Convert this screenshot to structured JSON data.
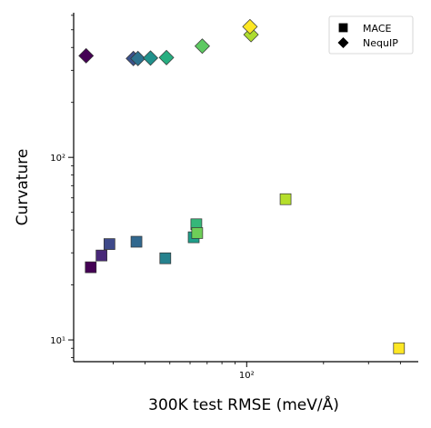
{
  "chart_data": {
    "type": "scatter",
    "xlabel": "300K test RMSE (meV/Å)",
    "ylabel": "Curvature",
    "xscale": "log",
    "yscale": "log",
    "xlim": [
      21,
      470
    ],
    "ylim": [
      7.6,
      620
    ],
    "grid": false,
    "legend_position": "top-right",
    "x_ticks": [
      {
        "value": 100,
        "label": "10²"
      }
    ],
    "y_ticks": [
      {
        "value": 10,
        "label": "10¹"
      },
      {
        "value": 100,
        "label": "10²"
      }
    ],
    "colormap": "viridis",
    "series": [
      {
        "name": "MACE",
        "marker": "square",
        "points": [
          {
            "x": 24.5,
            "y": 25,
            "color": "#440154"
          },
          {
            "x": 27,
            "y": 29,
            "color": "#482878"
          },
          {
            "x": 29,
            "y": 33.5,
            "color": "#3e4989"
          },
          {
            "x": 37,
            "y": 34.5,
            "color": "#31688e"
          },
          {
            "x": 48,
            "y": 28,
            "color": "#26828e"
          },
          {
            "x": 62,
            "y": 36.5,
            "color": "#1f9e89"
          },
          {
            "x": 63.5,
            "y": 43,
            "color": "#35b779"
          },
          {
            "x": 64,
            "y": 38.5,
            "color": "#6ece58"
          },
          {
            "x": 142,
            "y": 59,
            "color": "#b5de2b"
          },
          {
            "x": 395,
            "y": 9,
            "color": "#fde725"
          }
        ]
      },
      {
        "name": "NequIP",
        "marker": "diamond",
        "points": [
          {
            "x": 23.5,
            "y": 360,
            "color": "#440154"
          },
          {
            "x": 36,
            "y": 348,
            "color": "#3b528b"
          },
          {
            "x": 37.5,
            "y": 348,
            "color": "#2c728e"
          },
          {
            "x": 42,
            "y": 350,
            "color": "#21918c"
          },
          {
            "x": 48.5,
            "y": 352,
            "color": "#28ae80"
          },
          {
            "x": 67,
            "y": 407,
            "color": "#5ec962"
          },
          {
            "x": 104,
            "y": 470,
            "color": "#addc30"
          },
          {
            "x": 103,
            "y": 520,
            "color": "#fde725"
          }
        ]
      }
    ]
  }
}
